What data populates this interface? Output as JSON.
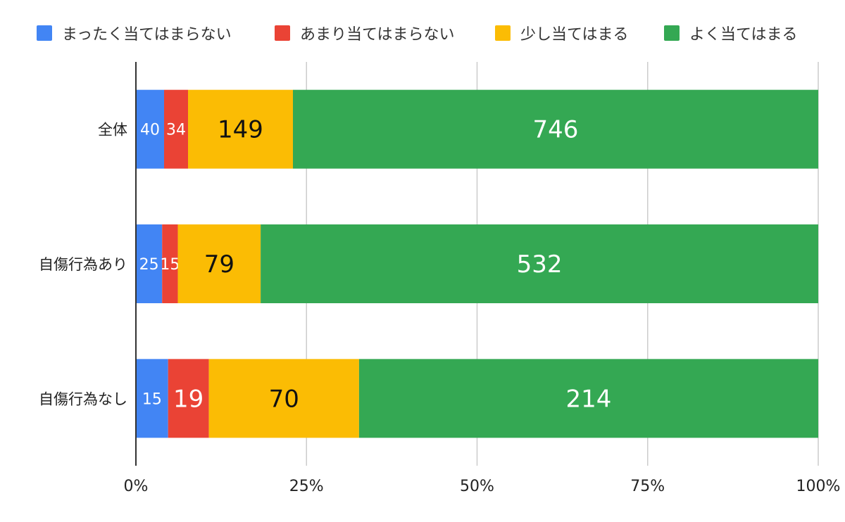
{
  "chart_data": {
    "type": "bar",
    "orientation": "horizontal",
    "stacked": "percent",
    "categories": [
      "全体",
      "自傷行為あり",
      "自傷行為なし"
    ],
    "series": [
      {
        "name": "まったく当てはまらない",
        "values": [
          40,
          25,
          15
        ],
        "color": "#4285F4"
      },
      {
        "name": "あまり当てはまらない",
        "values": [
          34,
          15,
          19
        ],
        "color": "#EA4335"
      },
      {
        "name": "少し当てはまる",
        "values": [
          149,
          79,
          70
        ],
        "color": "#FBBC04"
      },
      {
        "name": "よく当てはまる",
        "values": [
          746,
          532,
          214
        ],
        "color": "#34A853"
      }
    ],
    "x_ticks": [
      "0%",
      "25%",
      "50%",
      "75%",
      "100%"
    ],
    "xlim": [
      0,
      100
    ],
    "grid": true,
    "legend_position": "top"
  }
}
